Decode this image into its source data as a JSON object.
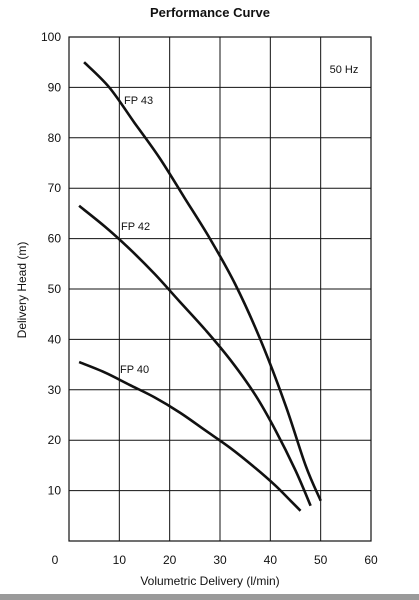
{
  "chart_data": {
    "type": "line",
    "title": "Performance Curve",
    "xlabel": "Volumetric Delivery (l/min)",
    "ylabel": "Delivery Head (m)",
    "xlim": [
      0,
      60
    ],
    "ylim": [
      0,
      100
    ],
    "x_ticks": [
      0,
      10,
      20,
      30,
      40,
      50,
      60
    ],
    "y_ticks": [
      10,
      20,
      30,
      40,
      50,
      60,
      70,
      80,
      90,
      100
    ],
    "grid": true,
    "annotation": "50 Hz",
    "series": [
      {
        "name": "FP 43",
        "points": [
          [
            3,
            95
          ],
          [
            8,
            90
          ],
          [
            13,
            83
          ],
          [
            18,
            76
          ],
          [
            23,
            68
          ],
          [
            28,
            60
          ],
          [
            33,
            51
          ],
          [
            38,
            40
          ],
          [
            43,
            27
          ],
          [
            47,
            15
          ],
          [
            50,
            8
          ]
        ]
      },
      {
        "name": "FP 42",
        "points": [
          [
            2,
            66.5
          ],
          [
            7,
            62.5
          ],
          [
            12,
            58
          ],
          [
            17,
            53
          ],
          [
            22,
            47.5
          ],
          [
            27,
            42
          ],
          [
            32,
            36
          ],
          [
            37,
            29
          ],
          [
            41,
            22
          ],
          [
            45,
            14
          ],
          [
            48,
            7
          ]
        ]
      },
      {
        "name": "FP 40",
        "points": [
          [
            2,
            35.5
          ],
          [
            7,
            33.5
          ],
          [
            12,
            31
          ],
          [
            17,
            28.5
          ],
          [
            22,
            25.5
          ],
          [
            27,
            22
          ],
          [
            32,
            18.5
          ],
          [
            37,
            14.5
          ],
          [
            41,
            11
          ],
          [
            44,
            8
          ],
          [
            46,
            6
          ]
        ]
      }
    ]
  }
}
